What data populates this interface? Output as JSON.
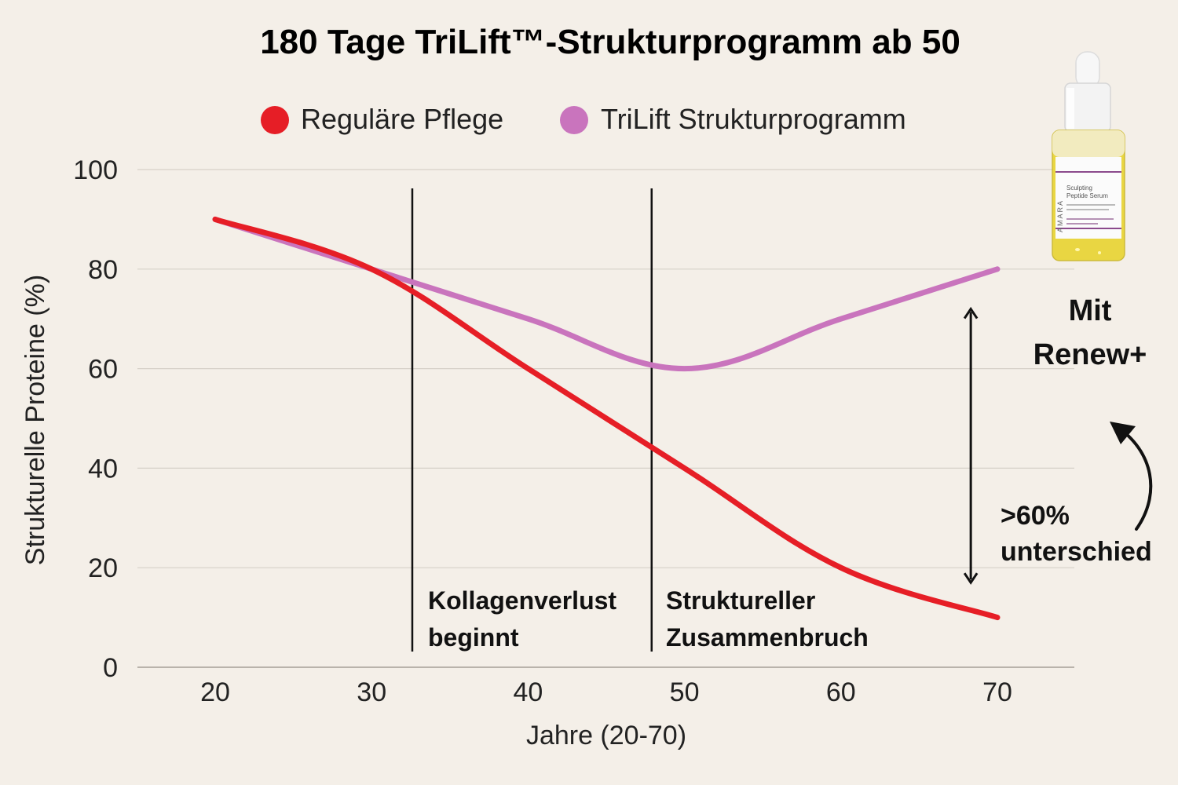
{
  "colors": {
    "background": "#f4efe8",
    "regular": "#e61e26",
    "trilift": "#c974bd",
    "grid": "#d6d0c8",
    "ink": "#111111"
  },
  "chart_data": {
    "type": "line",
    "title": "180 Tage TriLift™-Strukturprogramm ab 50",
    "xlabel": "Jahre (20-70)",
    "ylabel": "Strukturelle Proteine (%)",
    "xlim": [
      15,
      75
    ],
    "ylim": [
      0,
      100
    ],
    "xticks": [
      20,
      30,
      40,
      50,
      60,
      70
    ],
    "yticks": [
      0,
      20,
      40,
      60,
      80,
      100
    ],
    "grid": true,
    "legend": "top",
    "series": [
      {
        "name": "Reguläre Pflege",
        "color": "#e61e26",
        "x": [
          20,
          30,
          40,
          50,
          60,
          70
        ],
        "y": [
          90,
          80,
          60,
          40,
          20,
          10
        ]
      },
      {
        "name": "TriLift Strukturprogramm",
        "color": "#c974bd",
        "x": [
          20,
          30,
          40,
          50,
          60,
          70
        ],
        "y": [
          90,
          80,
          70,
          60,
          70,
          80
        ]
      }
    ],
    "vlines": [
      {
        "x": 32.6,
        "label_line1": "Kollagenverlust",
        "label_line2": "beginnt"
      },
      {
        "x": 47.9,
        "label_line1": "Struktureller",
        "label_line2": "Zusammenbruch"
      }
    ],
    "difference_arrow": {
      "x": 68.3,
      "y_from": 72,
      "y_to": 17,
      "label_line1": ">60%",
      "label_line2": "unterschied"
    }
  },
  "product": {
    "callout_line1": "Mit",
    "callout_line2": "Renew+",
    "brand": "AMARA",
    "name_line1": "Sculpting",
    "name_line2": "Peptide Serum"
  }
}
